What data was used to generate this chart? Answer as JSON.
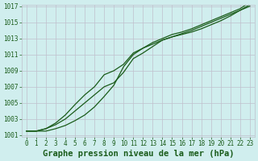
{
  "title": "Graphe pression niveau de la mer (hPa)",
  "background_color": "#d0eeee",
  "line_color": "#1a5c1a",
  "grid_color": "#c0c0cc",
  "hours": [
    0,
    1,
    2,
    3,
    4,
    5,
    6,
    7,
    8,
    9,
    10,
    11,
    12,
    13,
    14,
    15,
    16,
    17,
    18,
    19,
    20,
    21,
    22,
    23
  ],
  "line_top": [
    1001.5,
    1001.5,
    1001.8,
    1002.5,
    1003.5,
    1004.8,
    1006.0,
    1007.0,
    1008.5,
    1009.0,
    1009.8,
    1011.2,
    1011.8,
    1012.3,
    1012.8,
    1013.2,
    1013.5,
    1013.8,
    1014.2,
    1014.7,
    1015.2,
    1015.8,
    1016.5,
    1017.0
  ],
  "line_mid": [
    1001.5,
    1001.5,
    1001.8,
    1002.3,
    1003.0,
    1004.0,
    1005.0,
    1006.0,
    1007.0,
    1007.5,
    1008.8,
    1010.5,
    1011.2,
    1012.0,
    1012.8,
    1013.2,
    1013.6,
    1014.0,
    1014.5,
    1015.0,
    1015.5,
    1016.0,
    1016.5,
    1017.2
  ],
  "line_bot": [
    1001.5,
    1001.5,
    1001.5,
    1001.8,
    1002.2,
    1002.8,
    1003.5,
    1004.5,
    1005.8,
    1007.2,
    1009.5,
    1011.0,
    1011.8,
    1012.5,
    1013.0,
    1013.5,
    1013.8,
    1014.2,
    1014.7,
    1015.2,
    1015.7,
    1016.2,
    1016.7,
    1017.5
  ],
  "ylim_min": 1001,
  "ylim_max": 1017,
  "ytick_step": 2,
  "tick_fontsize": 5.5,
  "title_fontsize": 7.5,
  "marker_size": 2.5,
  "line_width": 0.9
}
